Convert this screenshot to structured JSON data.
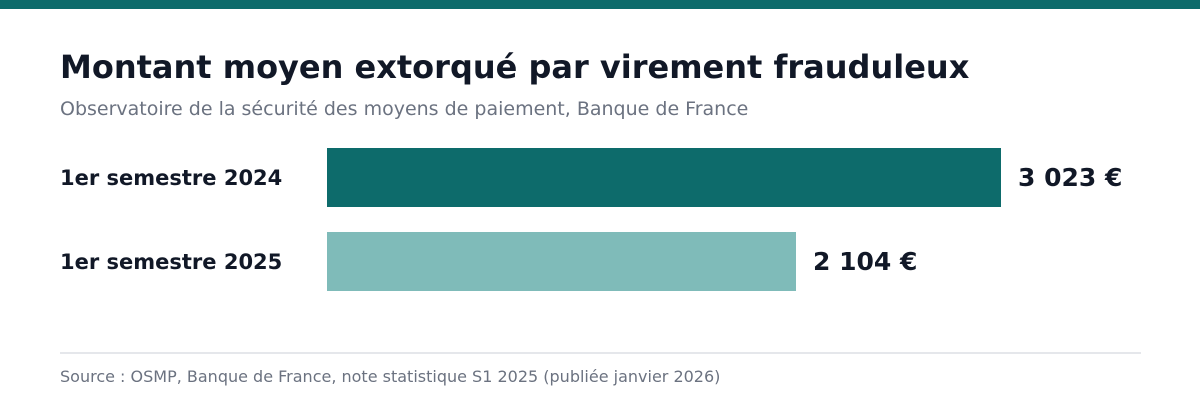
{
  "title": "Montant moyen extorqué par virement frauduleux",
  "subtitle": "Observatoire de la sécurité des moyens de paiement, Banque de France",
  "source": "Source : OSMP, Banque de France, note statistique S1 2025 (publiée janvier 2026)",
  "colors": {
    "accent": "#0d6b6b",
    "bar_2024": "#0d6b6b",
    "bar_2025": "#7fbbb9"
  },
  "chart_data": {
    "type": "bar",
    "orientation": "horizontal",
    "title": "Montant moyen extorqué par virement frauduleux",
    "subtitle": "Observatoire de la sécurité des moyens de paiement, Banque de France",
    "categories": [
      "1er semestre 2024",
      "1er semestre 2025"
    ],
    "values": [
      3023,
      2104
    ],
    "value_labels": [
      "3 023 €",
      "2 104 €"
    ],
    "bar_colors": [
      "#0d6b6b",
      "#7fbbb9"
    ],
    "xlabel": "",
    "ylabel": "",
    "grid": false
  }
}
